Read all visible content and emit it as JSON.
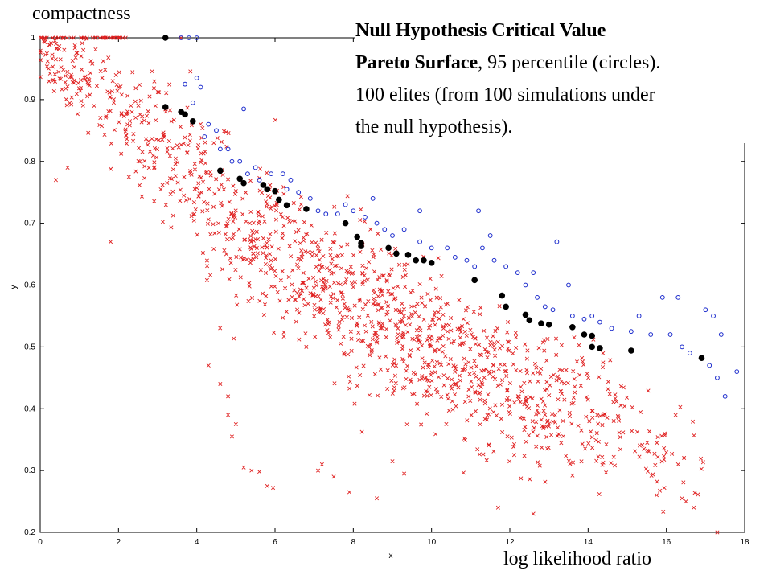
{
  "annotations": {
    "top_left": "compactness",
    "bottom_right": "log likelihood ratio"
  },
  "title_block": {
    "line1": "Null Hypothesis Critical Value",
    "line2_bold": "Pareto Surface",
    "line2_rest": ", 95 percentile (circles).",
    "line3": "100 elites (from 100 simulations under",
    "line4": "the null hypothesis)."
  },
  "chart_data": {
    "type": "scatter",
    "xlabel": "x",
    "ylabel": "y",
    "xlim": [
      0,
      18
    ],
    "ylim": [
      0.2,
      1.0
    ],
    "xticks": [
      "0",
      "2",
      "4",
      "6",
      "8",
      "10",
      "12",
      "14",
      "16",
      "18"
    ],
    "yticks": [
      "0.2",
      "0.3",
      "0.4",
      "0.5",
      "0.6",
      "0.7",
      "0.8",
      "0.9",
      "1"
    ],
    "grid": false,
    "colors": {
      "cross": "#e02020",
      "circle": "#1a2acc",
      "front": "#000000"
    },
    "cloud_spec": {
      "description": "dense cloud of red x markers (individual simulation points)",
      "bands": [
        [
          0.0,
          1.0,
          0.96,
          0.032,
          70
        ],
        [
          1.0,
          2.5,
          0.9,
          0.045,
          90
        ],
        [
          2.5,
          4.0,
          0.815,
          0.055,
          110
        ],
        [
          4.0,
          5.5,
          0.725,
          0.06,
          130
        ],
        [
          5.5,
          7.0,
          0.64,
          0.065,
          150
        ],
        [
          7.0,
          8.5,
          0.575,
          0.065,
          170
        ],
        [
          8.5,
          10.0,
          0.52,
          0.065,
          190
        ],
        [
          10.0,
          11.5,
          0.47,
          0.06,
          170
        ],
        [
          11.5,
          13.0,
          0.43,
          0.058,
          140
        ],
        [
          13.0,
          14.5,
          0.39,
          0.055,
          100
        ],
        [
          14.5,
          16.0,
          0.365,
          0.045,
          60
        ],
        [
          16.0,
          17.0,
          0.34,
          0.045,
          12
        ]
      ],
      "outliers": [
        [
          5.2,
          0.305
        ],
        [
          5.4,
          0.3
        ],
        [
          5.6,
          0.298
        ],
        [
          5.8,
          0.275
        ],
        [
          5.95,
          0.272
        ],
        [
          4.9,
          0.355
        ],
        [
          5.0,
          0.375
        ],
        [
          4.8,
          0.39
        ],
        [
          4.8,
          0.42
        ],
        [
          4.6,
          0.44
        ],
        [
          4.3,
          0.47
        ],
        [
          7.1,
          0.3
        ],
        [
          7.2,
          0.31
        ],
        [
          7.5,
          0.29
        ],
        [
          7.9,
          0.265
        ],
        [
          8.6,
          0.255
        ],
        [
          9.0,
          0.315
        ],
        [
          9.3,
          0.295
        ],
        [
          11.7,
          0.24
        ],
        [
          12.6,
          0.23
        ],
        [
          16.3,
          0.31
        ],
        [
          16.4,
          0.255
        ],
        [
          16.5,
          0.25
        ],
        [
          16.7,
          0.24
        ],
        [
          17.3,
          0.2
        ],
        [
          0.7,
          0.79
        ],
        [
          0.4,
          0.77
        ],
        [
          1.8,
          0.67
        ]
      ]
    },
    "series": [
      {
        "marker": "open-circle",
        "points": [
          [
            3.6,
            1.0
          ],
          [
            3.8,
            1.0
          ],
          [
            4.0,
            1.0
          ],
          [
            3.7,
            0.925
          ],
          [
            4.0,
            0.935
          ],
          [
            4.1,
            0.92
          ],
          [
            3.9,
            0.895
          ],
          [
            4.3,
            0.86
          ],
          [
            4.5,
            0.85
          ],
          [
            4.6,
            0.82
          ],
          [
            4.8,
            0.82
          ],
          [
            4.9,
            0.8
          ],
          [
            5.1,
            0.8
          ],
          [
            5.5,
            0.79
          ],
          [
            5.3,
            0.78
          ],
          [
            5.6,
            0.77
          ],
          [
            5.9,
            0.78
          ],
          [
            6.2,
            0.78
          ],
          [
            6.4,
            0.77
          ],
          [
            6.3,
            0.755
          ],
          [
            6.6,
            0.75
          ],
          [
            6.9,
            0.74
          ],
          [
            7.1,
            0.72
          ],
          [
            7.3,
            0.715
          ],
          [
            7.6,
            0.715
          ],
          [
            7.8,
            0.73
          ],
          [
            8.0,
            0.72
          ],
          [
            8.3,
            0.71
          ],
          [
            8.6,
            0.7
          ],
          [
            8.8,
            0.69
          ],
          [
            9.0,
            0.68
          ],
          [
            9.3,
            0.69
          ],
          [
            9.7,
            0.67
          ],
          [
            10.0,
            0.66
          ],
          [
            10.4,
            0.66
          ],
          [
            10.6,
            0.645
          ],
          [
            10.9,
            0.64
          ],
          [
            11.1,
            0.63
          ],
          [
            11.3,
            0.66
          ],
          [
            11.6,
            0.64
          ],
          [
            11.9,
            0.63
          ],
          [
            12.2,
            0.62
          ],
          [
            12.4,
            0.6
          ],
          [
            12.7,
            0.58
          ],
          [
            12.9,
            0.565
          ],
          [
            13.1,
            0.56
          ],
          [
            13.6,
            0.55
          ],
          [
            13.9,
            0.545
          ],
          [
            14.1,
            0.55
          ],
          [
            14.3,
            0.54
          ],
          [
            14.6,
            0.53
          ],
          [
            15.1,
            0.525
          ],
          [
            15.6,
            0.52
          ],
          [
            16.1,
            0.52
          ],
          [
            16.4,
            0.5
          ],
          [
            16.6,
            0.49
          ],
          [
            17.1,
            0.47
          ],
          [
            17.3,
            0.45
          ],
          [
            17.5,
            0.42
          ],
          [
            17.8,
            0.46
          ],
          [
            15.3,
            0.55
          ],
          [
            15.9,
            0.58
          ],
          [
            16.3,
            0.58
          ],
          [
            17.0,
            0.56
          ],
          [
            17.2,
            0.55
          ],
          [
            17.4,
            0.52
          ],
          [
            11.5,
            0.68
          ],
          [
            12.6,
            0.62
          ],
          [
            13.5,
            0.6
          ],
          [
            9.7,
            0.72
          ],
          [
            8.5,
            0.74
          ],
          [
            13.2,
            0.67
          ],
          [
            11.2,
            0.72
          ],
          [
            5.2,
            0.885
          ],
          [
            4.2,
            0.84
          ]
        ]
      },
      {
        "marker": "filled-circle",
        "points": [
          [
            3.2,
            1.0
          ],
          [
            3.2,
            0.888
          ],
          [
            3.6,
            0.88
          ],
          [
            3.7,
            0.876
          ],
          [
            3.9,
            0.865
          ],
          [
            4.6,
            0.785
          ],
          [
            5.1,
            0.772
          ],
          [
            5.2,
            0.765
          ],
          [
            5.7,
            0.762
          ],
          [
            5.8,
            0.755
          ],
          [
            6.0,
            0.752
          ],
          [
            6.1,
            0.738
          ],
          [
            6.3,
            0.729
          ],
          [
            6.8,
            0.723
          ],
          [
            7.8,
            0.7
          ],
          [
            8.1,
            0.678
          ],
          [
            8.2,
            0.668
          ],
          [
            8.2,
            0.663
          ],
          [
            8.9,
            0.66
          ],
          [
            9.1,
            0.651
          ],
          [
            9.4,
            0.649
          ],
          [
            9.6,
            0.64
          ],
          [
            9.8,
            0.64
          ],
          [
            10.0,
            0.636
          ],
          [
            11.1,
            0.608
          ],
          [
            11.8,
            0.583
          ],
          [
            11.9,
            0.565
          ],
          [
            12.4,
            0.552
          ],
          [
            12.5,
            0.543
          ],
          [
            12.8,
            0.538
          ],
          [
            13.0,
            0.536
          ],
          [
            13.6,
            0.532
          ],
          [
            13.9,
            0.52
          ],
          [
            14.1,
            0.518
          ],
          [
            14.1,
            0.5
          ],
          [
            14.3,
            0.498
          ],
          [
            15.1,
            0.494
          ],
          [
            16.9,
            0.482
          ]
        ]
      }
    ]
  }
}
